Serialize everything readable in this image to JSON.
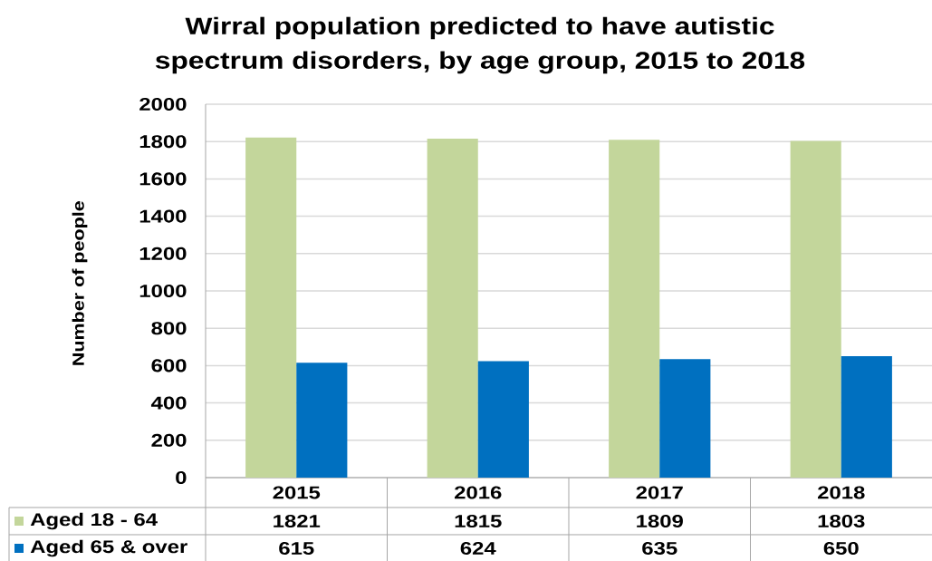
{
  "chart_data": {
    "type": "bar",
    "title": "Wirral population predicted to have autistic spectrum disorders,  by age group, 2015 to 2018",
    "ylabel": "Number of people",
    "categories": [
      "2015",
      "2016",
      "2017",
      "2018"
    ],
    "series": [
      {
        "name": "Aged 18 - 64",
        "color": "#c3d69b",
        "values": [
          1821,
          1815,
          1809,
          1803
        ]
      },
      {
        "name": "Aged 65 & over",
        "color": "#0070c0",
        "values": [
          615,
          624,
          635,
          650
        ]
      }
    ],
    "ylim": [
      0,
      2000
    ],
    "yticks": [
      0,
      200,
      400,
      600,
      800,
      1000,
      1200,
      1400,
      1600,
      1800,
      2000
    ],
    "grid": "y",
    "legend": "bottom left",
    "data_labels": true
  }
}
